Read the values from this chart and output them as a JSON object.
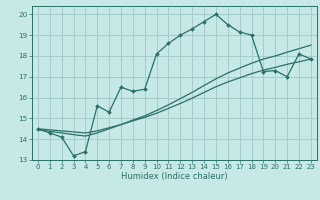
{
  "xlabel": "Humidex (Indice chaleur)",
  "background_color": "#c6e8e6",
  "grid_color": "#a0c8c6",
  "line_color": "#2a7068",
  "xlim": [
    -0.5,
    23.5
  ],
  "ylim": [
    13,
    20.4
  ],
  "yticks": [
    13,
    14,
    15,
    16,
    17,
    18,
    19,
    20
  ],
  "xticks": [
    0,
    1,
    2,
    3,
    4,
    5,
    6,
    7,
    8,
    9,
    10,
    11,
    12,
    13,
    14,
    15,
    16,
    17,
    18,
    19,
    20,
    21,
    22,
    23
  ],
  "main_line_x": [
    0,
    1,
    2,
    3,
    4,
    5,
    6,
    7,
    8,
    9,
    10,
    11,
    12,
    13,
    14,
    15,
    16,
    17,
    18,
    19,
    20,
    21,
    22,
    23
  ],
  "main_line_y": [
    14.5,
    14.3,
    14.1,
    13.2,
    13.4,
    15.6,
    15.3,
    16.5,
    16.3,
    16.4,
    18.1,
    18.6,
    19.0,
    19.3,
    19.65,
    20.0,
    19.5,
    19.15,
    19.0,
    17.25,
    17.3,
    17.0,
    18.1,
    17.85
  ],
  "line2_x": [
    0,
    1,
    2,
    3,
    4,
    5,
    6,
    7,
    8,
    9,
    10,
    11,
    12,
    13,
    14,
    15,
    16,
    17,
    18,
    19,
    20,
    21,
    22,
    23
  ],
  "line2_y": [
    14.5,
    14.45,
    14.4,
    14.35,
    14.3,
    14.4,
    14.55,
    14.7,
    14.88,
    15.05,
    15.25,
    15.48,
    15.72,
    15.97,
    16.25,
    16.52,
    16.75,
    16.95,
    17.15,
    17.32,
    17.45,
    17.6,
    17.72,
    17.85
  ],
  "line3_x": [
    0,
    1,
    2,
    3,
    4,
    5,
    6,
    7,
    8,
    9,
    10,
    11,
    12,
    13,
    14,
    15,
    16,
    17,
    18,
    19,
    20,
    21,
    22,
    23
  ],
  "line3_y": [
    14.45,
    14.38,
    14.3,
    14.22,
    14.15,
    14.3,
    14.5,
    14.7,
    14.92,
    15.12,
    15.38,
    15.65,
    15.95,
    16.25,
    16.58,
    16.9,
    17.18,
    17.42,
    17.65,
    17.85,
    18.0,
    18.18,
    18.35,
    18.52
  ]
}
